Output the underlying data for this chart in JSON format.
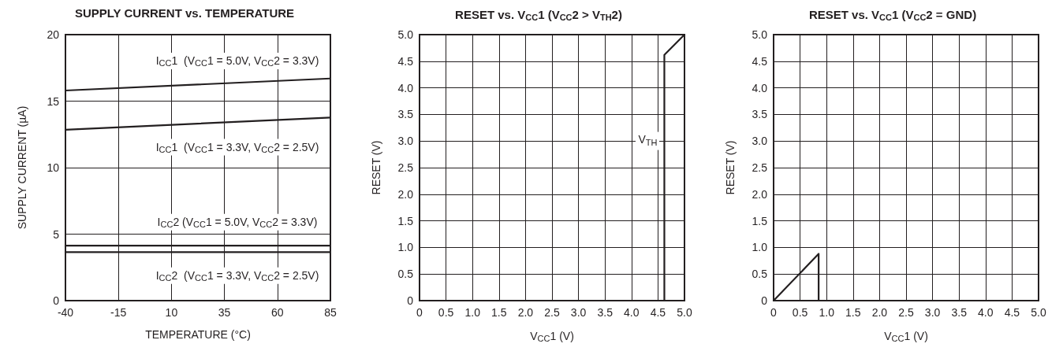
{
  "chart_data": [
    {
      "type": "line",
      "title": "SUPPLY CURRENT vs. TEMPERATURE",
      "xlabel": "TEMPERATURE (°C)",
      "ylabel": "SUPPLY CURRENT (µA)",
      "xlim": [
        -40,
        85
      ],
      "ylim": [
        0,
        20
      ],
      "xticks": [
        -40,
        -15,
        10,
        35,
        60,
        85
      ],
      "yticks": [
        0,
        5,
        10,
        15,
        20
      ],
      "grid": true,
      "marker": "none",
      "line_style": "solid",
      "series": [
        {
          "name": "I$_{CC}$1  (V$_{CC}$1 = 5.0V, V$_{CC}$2 = 3.3V)",
          "color": "#231f20",
          "x": [
            -40,
            85
          ],
          "values": [
            15.8,
            16.7
          ]
        },
        {
          "name": "I$_{CC}$1  (V$_{CC}$1 = 3.3V, V$_{CC}$2 = 2.5V)",
          "color": "#231f20",
          "x": [
            -40,
            85
          ],
          "values": [
            12.85,
            13.77
          ]
        },
        {
          "name": "I$_{CC}$2 (V$_{CC}$1 = 5.0V, V$_{CC}$2 = 3.3V)",
          "color": "#231f20",
          "x": [
            -40,
            85
          ],
          "values": [
            4.13,
            4.13
          ]
        },
        {
          "name": "I$_{CC}$2  (V$_{CC}$1 = 3.3V, V$_{CC}$2 = 2.5V)",
          "color": "#231f20",
          "x": [
            -40,
            85
          ],
          "values": [
            3.65,
            3.65
          ]
        }
      ]
    },
    {
      "type": "line",
      "title": "RESET vs. V$_{CC}$1 (V$_{CC}$2 > V$_{TH}$2)",
      "xlabel": "V$_{CC}$1 (V)",
      "ylabel": "RESET (V)",
      "xlim": [
        0,
        5
      ],
      "ylim": [
        0,
        5
      ],
      "xticks": [
        0,
        0.5,
        {
          "value": 1,
          "label": "1.0"
        },
        1.5,
        {
          "value": 2,
          "label": "2.0"
        },
        2.5,
        {
          "value": 3,
          "label": "3.0"
        },
        3.5,
        {
          "value": 4,
          "label": "4.0"
        },
        4.5,
        {
          "value": 5,
          "label": "5.0"
        }
      ],
      "yticks": [
        0,
        0.5,
        {
          "value": 1,
          "label": "1.0"
        },
        1.5,
        {
          "value": 2,
          "label": "2.0"
        },
        2.5,
        {
          "value": 3,
          "label": "3.0"
        },
        3.5,
        {
          "value": 4,
          "label": "4.0"
        },
        4.5,
        {
          "value": 5,
          "label": "5.0"
        }
      ],
      "grid": true,
      "marker": "none",
      "line_style": "solid",
      "series": [
        {
          "color": "#231f20",
          "x": [
            0,
            4.62,
            4.62,
            5
          ],
          "values": [
            0,
            0,
            4.62,
            5
          ]
        }
      ],
      "annotations": [
        {
          "text": "V$_{TH}$",
          "x": 4.62,
          "y": 3.0
        }
      ]
    },
    {
      "type": "line",
      "title": "RESET vs. V$_{CC}$1 (V$_{CC}$2 = GND)",
      "xlabel": "V$_{CC}$1 (V)",
      "ylabel": "RESET (V)",
      "xlim": [
        0,
        5
      ],
      "ylim": [
        0,
        5
      ],
      "xticks": [
        0,
        0.5,
        {
          "value": 1,
          "label": "1.0"
        },
        1.5,
        {
          "value": 2,
          "label": "2.0"
        },
        2.5,
        {
          "value": 3,
          "label": "3.0"
        },
        3.5,
        {
          "value": 4,
          "label": "4.0"
        },
        4.5,
        {
          "value": 5,
          "label": "5.0"
        }
      ],
      "yticks": [
        0,
        0.5,
        {
          "value": 1,
          "label": "1.0"
        },
        1.5,
        {
          "value": 2,
          "label": "2.0"
        },
        2.5,
        {
          "value": 3,
          "label": "3.0"
        },
        3.5,
        {
          "value": 4,
          "label": "4.0"
        },
        4.5,
        {
          "value": 5,
          "label": "5.0"
        }
      ],
      "grid": true,
      "marker": "none",
      "line_style": "solid",
      "series": [
        {
          "color": "#231f20",
          "x": [
            0,
            0.85,
            0.85,
            5
          ],
          "values": [
            0,
            0.88,
            0,
            0
          ]
        }
      ]
    }
  ]
}
